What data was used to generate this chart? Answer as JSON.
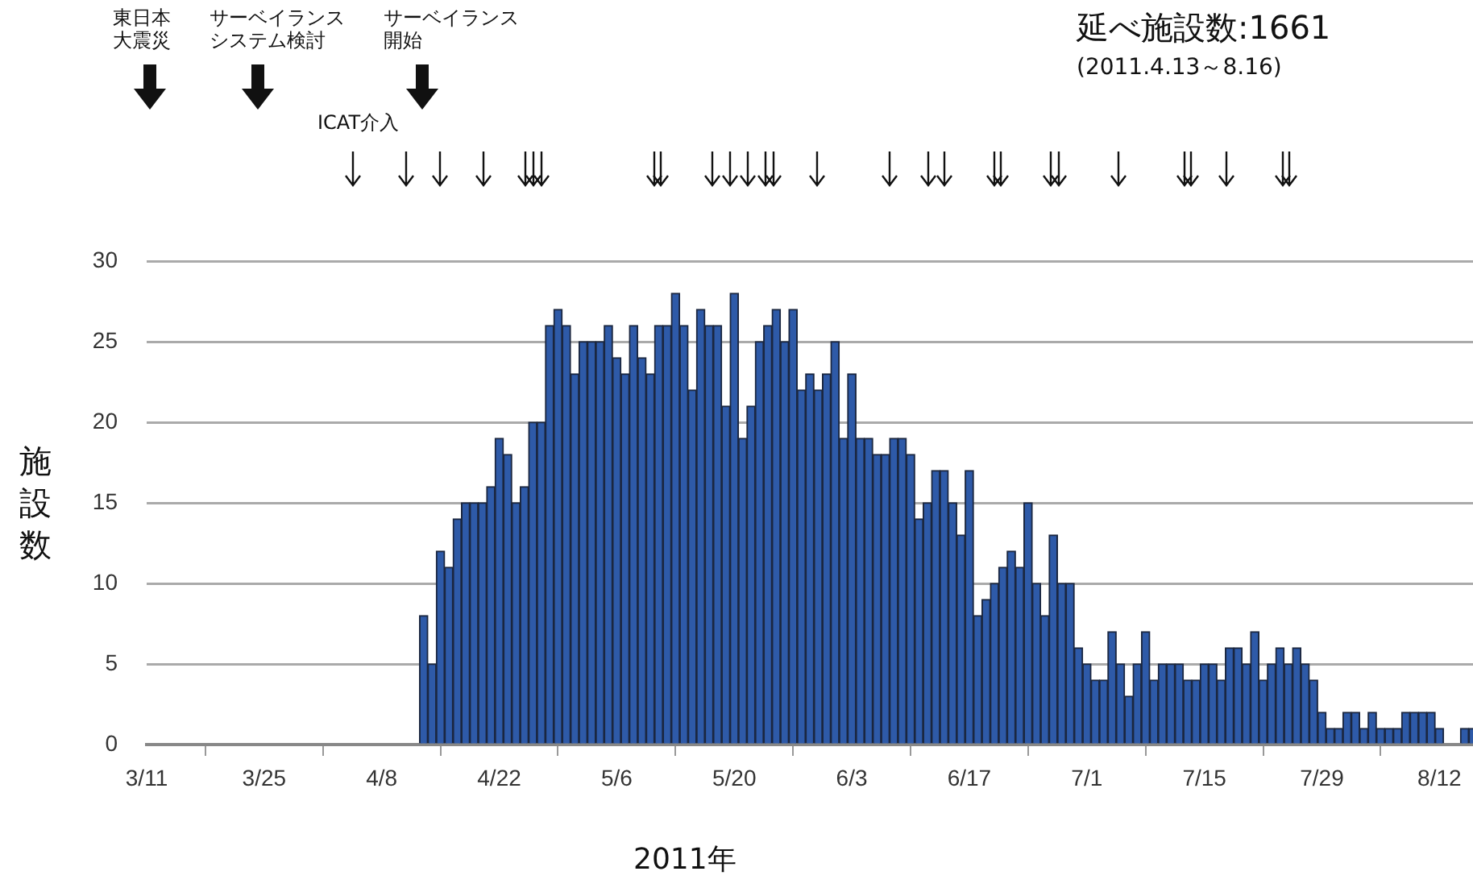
{
  "chart_data": {
    "type": "bar",
    "title": "延べ施設数:1661",
    "subtitle": "(2011.4.13～8.16)",
    "xlabel": "2011年",
    "ylabel": "施設数",
    "x": [
      "2011-04-13",
      "2011-04-14",
      "2011-04-15",
      "2011-04-16",
      "2011-04-17",
      "2011-04-18",
      "2011-04-19",
      "2011-04-20",
      "2011-04-21",
      "2011-04-22",
      "2011-04-23",
      "2011-04-24",
      "2011-04-25",
      "2011-04-26",
      "2011-04-27",
      "2011-04-28",
      "2011-04-29",
      "2011-04-30",
      "2011-05-01",
      "2011-05-02",
      "2011-05-03",
      "2011-05-04",
      "2011-05-05",
      "2011-05-06",
      "2011-05-07",
      "2011-05-08",
      "2011-05-09",
      "2011-05-10",
      "2011-05-11",
      "2011-05-12",
      "2011-05-13",
      "2011-05-14",
      "2011-05-15",
      "2011-05-16",
      "2011-05-17",
      "2011-05-18",
      "2011-05-19",
      "2011-05-20",
      "2011-05-21",
      "2011-05-22",
      "2011-05-23",
      "2011-05-24",
      "2011-05-25",
      "2011-05-26",
      "2011-05-27",
      "2011-05-28",
      "2011-05-29",
      "2011-05-30",
      "2011-05-31",
      "2011-06-01",
      "2011-06-02",
      "2011-06-03",
      "2011-06-04",
      "2011-06-05",
      "2011-06-06",
      "2011-06-07",
      "2011-06-08",
      "2011-06-09",
      "2011-06-10",
      "2011-06-11",
      "2011-06-12",
      "2011-06-13",
      "2011-06-14",
      "2011-06-15",
      "2011-06-16",
      "2011-06-17",
      "2011-06-18",
      "2011-06-19",
      "2011-06-20",
      "2011-06-21",
      "2011-06-22",
      "2011-06-23",
      "2011-06-24",
      "2011-06-25",
      "2011-06-26",
      "2011-06-27",
      "2011-06-28",
      "2011-06-29",
      "2011-06-30",
      "2011-07-01",
      "2011-07-02",
      "2011-07-03",
      "2011-07-04",
      "2011-07-05",
      "2011-07-06",
      "2011-07-07",
      "2011-07-08",
      "2011-07-09",
      "2011-07-10",
      "2011-07-11",
      "2011-07-12",
      "2011-07-13",
      "2011-07-14",
      "2011-07-15",
      "2011-07-16",
      "2011-07-17",
      "2011-07-18",
      "2011-07-19",
      "2011-07-20",
      "2011-07-21",
      "2011-07-22",
      "2011-07-23",
      "2011-07-24",
      "2011-07-25",
      "2011-07-26",
      "2011-07-27",
      "2011-07-28",
      "2011-07-29",
      "2011-07-30",
      "2011-07-31",
      "2011-08-01",
      "2011-08-02",
      "2011-08-03",
      "2011-08-04",
      "2011-08-05",
      "2011-08-06",
      "2011-08-07",
      "2011-08-08",
      "2011-08-09",
      "2011-08-10",
      "2011-08-11",
      "2011-08-12",
      "2011-08-13",
      "2011-08-14",
      "2011-08-15",
      "2011-08-16"
    ],
    "values": [
      8,
      5,
      12,
      11,
      14,
      15,
      15,
      15,
      16,
      19,
      18,
      15,
      16,
      20,
      20,
      26,
      27,
      26,
      23,
      25,
      25,
      25,
      26,
      24,
      23,
      26,
      24,
      23,
      26,
      26,
      28,
      26,
      22,
      27,
      26,
      26,
      21,
      28,
      19,
      21,
      25,
      26,
      27,
      25,
      27,
      22,
      23,
      22,
      23,
      25,
      19,
      23,
      19,
      19,
      18,
      18,
      19,
      19,
      18,
      14,
      15,
      17,
      17,
      15,
      13,
      17,
      8,
      9,
      10,
      11,
      12,
      11,
      15,
      10,
      8,
      13,
      10,
      10,
      6,
      5,
      4,
      4,
      7,
      5,
      3,
      5,
      7,
      4,
      5,
      5,
      5,
      4,
      4,
      5,
      5,
      4,
      6,
      6,
      5,
      7,
      4,
      5,
      6,
      5,
      6,
      5,
      4,
      2,
      1,
      1,
      2,
      2,
      1,
      2,
      1,
      1,
      1,
      2,
      2,
      2,
      2,
      1,
      0,
      0,
      1,
      1
    ],
    "color": "#2e5aa8",
    "xlim": [
      "2011-03-11",
      "2011-08-16"
    ],
    "xticks": [
      {
        "value": "2011-03-11",
        "label": "3/11"
      },
      {
        "value": "2011-03-25",
        "label": "3/25"
      },
      {
        "value": "2011-04-08",
        "label": "4/8"
      },
      {
        "value": "2011-04-22",
        "label": "4/22"
      },
      {
        "value": "2011-05-06",
        "label": "5/6"
      },
      {
        "value": "2011-05-20",
        "label": "5/20"
      },
      {
        "value": "2011-06-03",
        "label": "6/3"
      },
      {
        "value": "2011-06-17",
        "label": "6/17"
      },
      {
        "value": "2011-07-01",
        "label": "7/1"
      },
      {
        "value": "2011-07-15",
        "label": "7/15"
      },
      {
        "value": "2011-07-29",
        "label": "7/29"
      },
      {
        "value": "2011-08-12",
        "label": "8/12"
      }
    ],
    "ylim": [
      0,
      30
    ],
    "yticks": [
      0,
      5,
      10,
      15,
      20,
      25,
      30
    ],
    "grid": "y",
    "legend": false,
    "annotations": [
      "東日本大震災",
      "サーベイランスシステム検討",
      "サーベイランス開始",
      "ICAT介入"
    ]
  }
}
